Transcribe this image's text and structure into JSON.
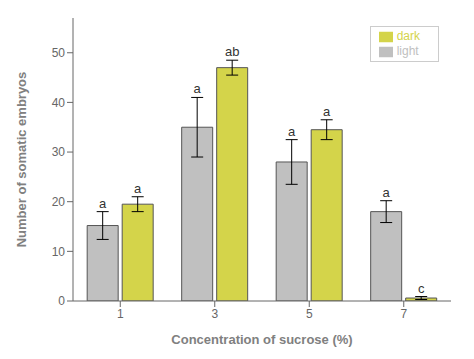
{
  "chart_data": {
    "type": "bar",
    "categories": [
      "1",
      "3",
      "5",
      "7"
    ],
    "series": [
      {
        "name": "light",
        "color": "#c0c0c0",
        "values": [
          15.2,
          35.0,
          28.0,
          18.0
        ],
        "errors": [
          2.8,
          6.0,
          4.5,
          2.2
        ],
        "labels": [
          "a",
          "a",
          "a",
          "a"
        ]
      },
      {
        "name": "dark",
        "color": "#d4d44a",
        "values": [
          19.5,
          47.0,
          34.5,
          0.6
        ],
        "errors": [
          1.5,
          1.5,
          2.0,
          0.3
        ],
        "labels": [
          "a",
          "ab",
          "a",
          "c"
        ]
      }
    ],
    "xlabel": "Concentration of sucrose (%)",
    "ylabel": "Number of somatic embryos",
    "ylim": [
      0,
      57
    ],
    "yticks": [
      0,
      10,
      20,
      30,
      40,
      50
    ],
    "grid": false,
    "legend": "upper right"
  }
}
